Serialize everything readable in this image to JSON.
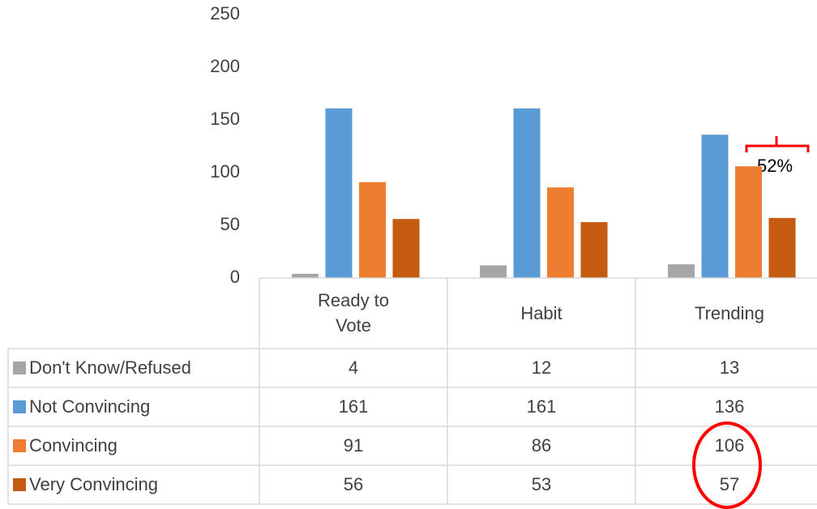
{
  "chart_data": {
    "type": "bar",
    "categories": [
      "Ready to Vote",
      "Habit",
      "Trending"
    ],
    "series": [
      {
        "name": "Don't Know/Refused",
        "color": "#a5a5a5",
        "values": [
          4,
          12,
          13
        ]
      },
      {
        "name": "Not Convincing",
        "color": "#5b9bd5",
        "values": [
          161,
          161,
          136
        ]
      },
      {
        "name": "Convincing",
        "color": "#ed7d31",
        "values": [
          91,
          86,
          106
        ]
      },
      {
        "name": "Very Convincing",
        "color": "#c55a11",
        "values": [
          56,
          53,
          57
        ]
      }
    ],
    "ylim": [
      0,
      250
    ],
    "yticks": [
      0,
      50,
      100,
      150,
      200,
      250
    ],
    "grid": false,
    "annotations": [
      "52%"
    ]
  }
}
